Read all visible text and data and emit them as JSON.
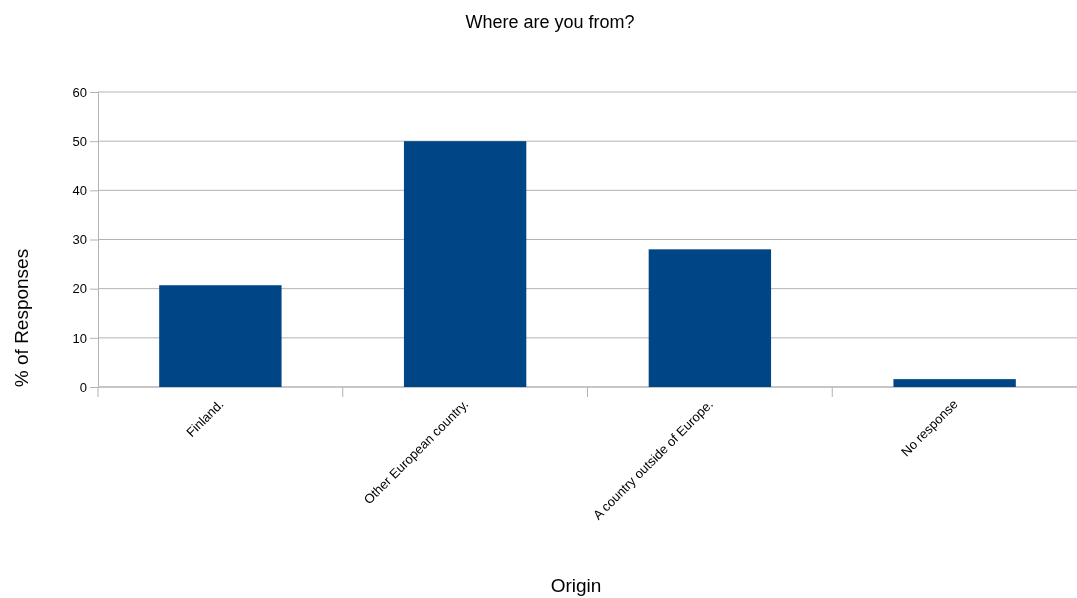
{
  "chart_data": {
    "type": "bar",
    "title": "Where are you from?",
    "xlabel": "Origin",
    "ylabel": "% of Responses",
    "categories": [
      "Finland.",
      "Other European country.",
      "A country outside of Europe.",
      "No response"
    ],
    "values": [
      20.7,
      50,
      28,
      1.6
    ],
    "color": "#004586",
    "ylim": [
      0,
      60
    ],
    "yticks": [
      0,
      10,
      20,
      30,
      40,
      50,
      60
    ],
    "grid": "y"
  }
}
